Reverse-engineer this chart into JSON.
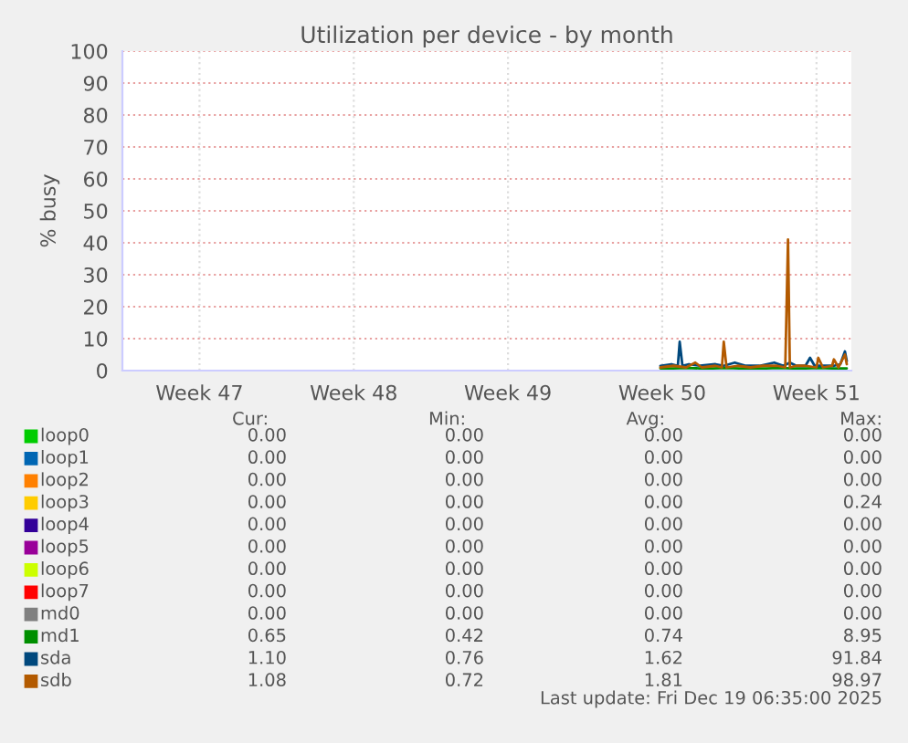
{
  "chart_data": {
    "type": "line",
    "title": "Utilization per device - by month",
    "ylabel": "% busy",
    "xlim": [
      "2025-11-16T09:00",
      "2025-12-19T11:00"
    ],
    "xticks": [
      {
        "value": "2025-11-19T21:00",
        "label": "Week 47"
      },
      {
        "value": "2025-11-26T21:00",
        "label": "Week 48"
      },
      {
        "value": "2025-12-03T21:00",
        "label": "Week 49"
      },
      {
        "value": "2025-12-10T21:00",
        "label": "Week 50"
      },
      {
        "value": "2025-12-17T21:00",
        "label": "Week 51"
      }
    ],
    "ylim": [
      0,
      100
    ],
    "yticks": [
      0,
      10,
      20,
      30,
      40,
      50,
      60,
      70,
      80,
      90,
      100
    ],
    "grid": true,
    "legend": "bottom",
    "marker": "none",
    "line_style": "solid",
    "series": [
      {
        "name": "loop0",
        "color": "#00cc00"
      },
      {
        "name": "loop1",
        "color": "#0066b3"
      },
      {
        "name": "loop2",
        "color": "#ff8000"
      },
      {
        "name": "loop3",
        "color": "#ffcc00"
      },
      {
        "name": "loop4",
        "color": "#330099"
      },
      {
        "name": "loop5",
        "color": "#990099"
      },
      {
        "name": "loop6",
        "color": "#ccff00"
      },
      {
        "name": "loop7",
        "color": "#ff0000"
      },
      {
        "name": "md0",
        "color": "#808080"
      },
      {
        "name": "md1",
        "color": "#008f00",
        "x": [
          "2025-12-10T19:00",
          "2025-12-11T09:00",
          "2025-12-11T23:00",
          "2025-12-12T14:00",
          "2025-12-13T04:00",
          "2025-12-13T19:00",
          "2025-12-14T09:00",
          "2025-12-14T23:00",
          "2025-12-15T14:00",
          "2025-12-16T04:00",
          "2025-12-16T19:00",
          "2025-12-17T09:00",
          "2025-12-17T23:00",
          "2025-12-18T14:00",
          "2025-12-19T06:00"
        ],
        "values": [
          0.7,
          0.7,
          0.8,
          0.7,
          0.7,
          0.8,
          0.7,
          0.7,
          0.7,
          0.8,
          0.7,
          0.7,
          0.8,
          0.7,
          0.7
        ]
      },
      {
        "name": "sda",
        "color": "#00487d",
        "x": [
          "2025-12-10T19:00",
          "2025-12-11T07:00",
          "2025-12-11T14:00",
          "2025-12-11T16:00",
          "2025-12-11T19:00",
          "2025-12-12T02:00",
          "2025-12-12T14:00",
          "2025-12-13T07:00",
          "2025-12-13T16:00",
          "2025-12-14T04:00",
          "2025-12-14T16:00",
          "2025-12-15T07:00",
          "2025-12-15T23:00",
          "2025-12-16T09:00",
          "2025-12-16T16:00",
          "2025-12-16T23:00",
          "2025-12-17T09:00",
          "2025-12-17T14:00",
          "2025-12-17T19:00",
          "2025-12-18T07:00",
          "2025-12-18T16:00",
          "2025-12-18T23:00",
          "2025-12-19T04:00",
          "2025-12-19T06:00"
        ],
        "values": [
          1.5,
          2,
          1.5,
          9,
          1.5,
          2,
          1.5,
          2,
          1.5,
          2.5,
          1.5,
          1.5,
          2.5,
          1.5,
          2.5,
          1.5,
          1.5,
          4,
          1.5,
          1.5,
          1.5,
          2,
          6,
          3
        ]
      },
      {
        "name": "sdb",
        "color": "#b35a00",
        "x": [
          "2025-12-10T19:00",
          "2025-12-11T09:00",
          "2025-12-11T23:00",
          "2025-12-12T09:00",
          "2025-12-12T16:00",
          "2025-12-13T07:00",
          "2025-12-13T14:00",
          "2025-12-13T16:00",
          "2025-12-13T19:00",
          "2025-12-14T07:00",
          "2025-12-14T21:00",
          "2025-12-15T11:00",
          "2025-12-16T02:00",
          "2025-12-16T11:00",
          "2025-12-16T14:00",
          "2025-12-16T16:00",
          "2025-12-16T23:00",
          "2025-12-17T09:00",
          "2025-12-17T21:00",
          "2025-12-17T23:00",
          "2025-12-18T04:00",
          "2025-12-18T14:00",
          "2025-12-18T16:00",
          "2025-12-18T21:00",
          "2025-12-19T04:00",
          "2025-12-19T06:00"
        ],
        "values": [
          1,
          1.5,
          1,
          2.5,
          1,
          1.5,
          1,
          9,
          1,
          1.5,
          1,
          1.5,
          1.5,
          1,
          41,
          1,
          1.5,
          1.5,
          1,
          4,
          1,
          1.5,
          3.5,
          1,
          5,
          2
        ]
      }
    ],
    "annotations": [
      "Cur:",
      "Min:",
      "Avg:",
      "Max:",
      "0.00",
      "0.00",
      "0.00",
      "0.00",
      "0.00",
      "0.00",
      "0.00",
      "0.00",
      "0.00",
      "0.00",
      "0.00",
      "0.00",
      "0.00",
      "0.00",
      "0.00",
      "0.24",
      "0.00",
      "0.00",
      "0.00",
      "0.00",
      "0.00",
      "0.00",
      "0.00",
      "0.00",
      "0.00",
      "0.00",
      "0.00",
      "0.00",
      "0.00",
      "0.00",
      "0.00",
      "0.00",
      "0.00",
      "0.00",
      "0.00",
      "0.00",
      "0.65",
      "0.42",
      "0.74",
      "8.95",
      "1.10",
      "0.76",
      "1.62",
      "91.84",
      "1.08",
      "0.72",
      "1.81",
      "98.97",
      "Last update: Fri Dec 19 06:35:00 2025"
    ]
  }
}
